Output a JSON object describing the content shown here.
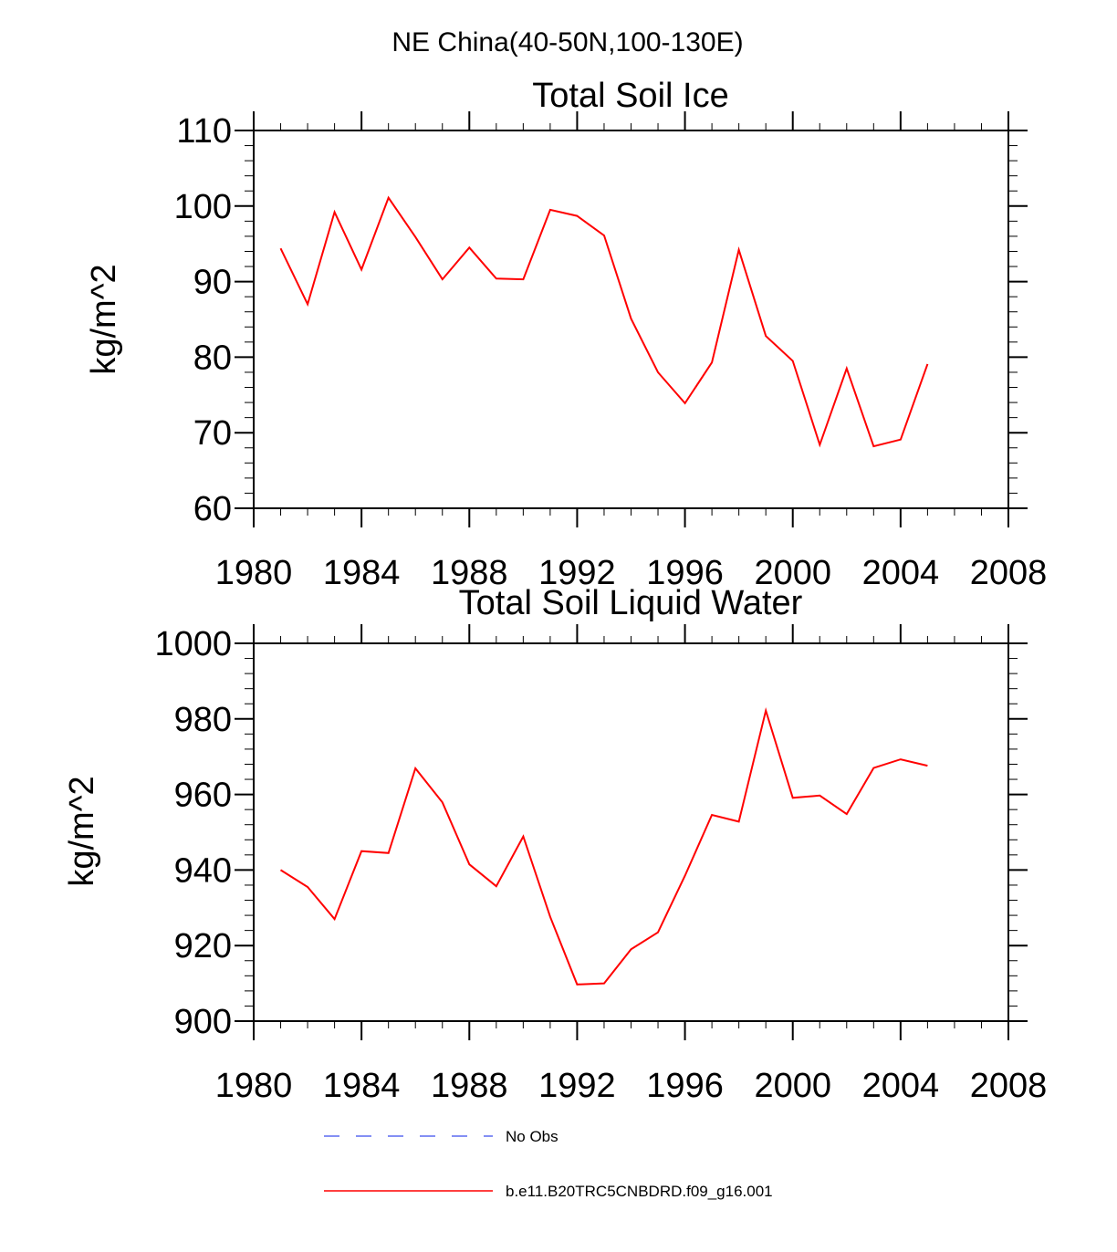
{
  "figure": {
    "title": "NE China(40-50N,100-130E)",
    "colors": {
      "model": "#ff0000",
      "obs": "#5b6cf0",
      "axis": "#000000"
    }
  },
  "chart_data": [
    {
      "type": "line",
      "title": "Total Soil Ice",
      "xlabel": "",
      "ylabel": "kg/m^2",
      "xlim": [
        1980,
        2008
      ],
      "ylim": [
        60,
        110
      ],
      "xticks": [
        1980,
        1984,
        1988,
        1992,
        1996,
        2000,
        2004,
        2008
      ],
      "yticks": [
        60,
        70,
        80,
        90,
        100,
        110
      ],
      "x": [
        1981,
        1982,
        1983,
        1984,
        1985,
        1986,
        1987,
        1988,
        1989,
        1990,
        1991,
        1992,
        1993,
        1994,
        1995,
        1996,
        1997,
        1998,
        1999,
        2000,
        2001,
        2002,
        2003,
        2004,
        2005
      ],
      "series": [
        {
          "name": "b.e11.B20TRC5CNBDRD.f09_g16.001",
          "values": [
            94.4,
            87.0,
            99.2,
            91.6,
            101.1,
            95.9,
            90.3,
            94.5,
            90.4,
            90.3,
            99.5,
            98.7,
            96.1,
            85.1,
            78.0,
            73.9,
            79.3,
            94.2,
            82.8,
            79.5,
            68.4,
            78.5,
            68.2,
            69.1,
            79.1
          ]
        }
      ]
    },
    {
      "type": "line",
      "title": "Total Soil Liquid Water",
      "xlabel": "",
      "ylabel": "kg/m^2",
      "xlim": [
        1980,
        2008
      ],
      "ylim": [
        900,
        1000
      ],
      "xticks": [
        1980,
        1984,
        1988,
        1992,
        1996,
        2000,
        2004,
        2008
      ],
      "yticks": [
        900,
        920,
        940,
        960,
        980,
        1000
      ],
      "x": [
        1981,
        1982,
        1983,
        1984,
        1985,
        1986,
        1987,
        1988,
        1989,
        1990,
        1991,
        1992,
        1993,
        1994,
        1995,
        1996,
        1997,
        1998,
        1999,
        2000,
        2001,
        2002,
        2003,
        2004,
        2005
      ],
      "series": [
        {
          "name": "b.e11.B20TRC5CNBDRD.f09_g16.001",
          "values": [
            940.0,
            935.5,
            927.0,
            945.0,
            944.5,
            966.9,
            957.9,
            941.5,
            935.7,
            948.9,
            927.6,
            909.7,
            910.0,
            919.0,
            923.5,
            938.5,
            954.6,
            952.8,
            982.2,
            959.1,
            959.7,
            954.8,
            967.0,
            969.3,
            967.6
          ]
        }
      ]
    }
  ],
  "legend": {
    "placement": "bottom-center",
    "items": [
      {
        "label": "No Obs",
        "style": "dashed",
        "color": "#5b6cf0"
      },
      {
        "label": "b.e11.B20TRC5CNBDRD.f09_g16.001",
        "style": "solid",
        "color": "#ff0000"
      }
    ]
  }
}
